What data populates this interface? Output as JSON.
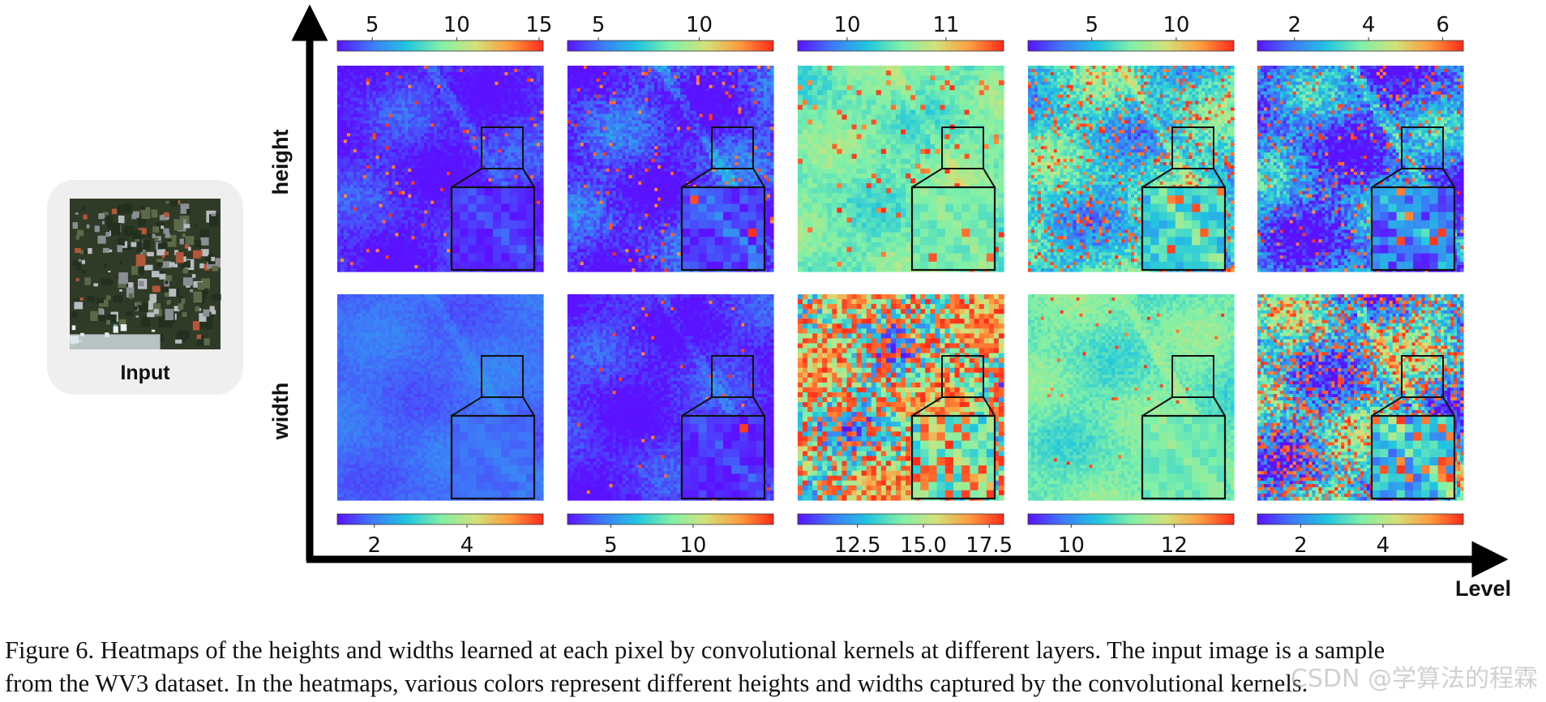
{
  "figure": {
    "input_label": "Input",
    "row_labels": [
      "height",
      "width"
    ],
    "x_axis_label": "Level",
    "colormap": [
      "#5a12ff",
      "#3d7cf7",
      "#21c6df",
      "#7ff0a8",
      "#d2e27a",
      "#ff9a3e",
      "#ff2a1a"
    ],
    "top_colorbars": [
      {
        "ticks": [
          {
            "label": "5",
            "pos": 0.17
          },
          {
            "label": "10",
            "pos": 0.58
          },
          {
            "label": "15",
            "pos": 0.98
          }
        ]
      },
      {
        "ticks": [
          {
            "label": "5",
            "pos": 0.15
          },
          {
            "label": "10",
            "pos": 0.64
          }
        ]
      },
      {
        "ticks": [
          {
            "label": "10",
            "pos": 0.24
          },
          {
            "label": "11",
            "pos": 0.72
          }
        ]
      },
      {
        "ticks": [
          {
            "label": "5",
            "pos": 0.31
          },
          {
            "label": "10",
            "pos": 0.72
          }
        ]
      },
      {
        "ticks": [
          {
            "label": "2",
            "pos": 0.18
          },
          {
            "label": "4",
            "pos": 0.54
          },
          {
            "label": "6",
            "pos": 0.9
          }
        ]
      }
    ],
    "bottom_colorbars": [
      {
        "ticks": [
          {
            "label": "2",
            "pos": 0.18
          },
          {
            "label": "4",
            "pos": 0.63
          }
        ]
      },
      {
        "ticks": [
          {
            "label": "5",
            "pos": 0.21
          },
          {
            "label": "10",
            "pos": 0.61
          }
        ]
      },
      {
        "ticks": [
          {
            "label": "12.5",
            "pos": 0.29
          },
          {
            "label": "15.0",
            "pos": 0.61
          },
          {
            "label": "17.5",
            "pos": 0.93
          }
        ]
      },
      {
        "ticks": [
          {
            "label": "10",
            "pos": 0.21
          },
          {
            "label": "12",
            "pos": 0.71
          }
        ]
      },
      {
        "ticks": [
          {
            "label": "2",
            "pos": 0.21
          },
          {
            "label": "4",
            "pos": 0.61
          }
        ]
      }
    ],
    "heatmaps": [
      {
        "row": 0,
        "level": 1,
        "base": 0.04,
        "spread": 0.2,
        "hot": 0.02
      },
      {
        "row": 0,
        "level": 2,
        "base": 0.06,
        "spread": 0.3,
        "hot": 0.03
      },
      {
        "row": 0,
        "level": 3,
        "base": 0.48,
        "spread": 0.22,
        "hot": 0.05
      },
      {
        "row": 0,
        "level": 4,
        "base": 0.36,
        "spread": 0.45,
        "hot": 0.12
      },
      {
        "row": 0,
        "level": 5,
        "base": 0.16,
        "spread": 0.55,
        "hot": 0.06
      },
      {
        "row": 1,
        "level": 1,
        "base": 0.14,
        "spread": 0.1,
        "hot": 0.0
      },
      {
        "row": 1,
        "level": 2,
        "base": 0.04,
        "spread": 0.2,
        "hot": 0.01
      },
      {
        "row": 1,
        "level": 3,
        "base": 0.45,
        "spread": 0.7,
        "hot": 0.42
      },
      {
        "row": 1,
        "level": 4,
        "base": 0.47,
        "spread": 0.2,
        "hot": 0.01
      },
      {
        "row": 1,
        "level": 5,
        "base": 0.3,
        "spread": 0.7,
        "hot": 0.22
      }
    ]
  },
  "caption": {
    "line1": "Figure 6. Heatmaps of the heights and widths learned at each pixel by convolutional kernels at different layers. The input image is a sample",
    "line2": "from the WV3 dataset. In the heatmaps, various colors represent different heights and widths captured by the convolutional kernels."
  },
  "watermark": "CSDN @学算法的程霖"
}
